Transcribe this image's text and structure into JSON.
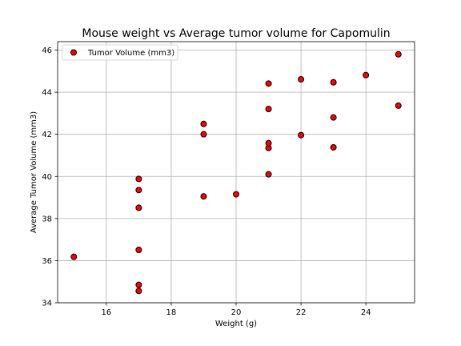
{
  "chart_data": {
    "type": "scatter",
    "title": "Mouse weight vs Average tumor volume for Capomulin",
    "xlabel": "Weight (g)",
    "ylabel": "Average Tumor Volume (mm3)",
    "xlim": [
      14.5,
      25.5
    ],
    "ylim": [
      34,
      46.4
    ],
    "xticks": [
      16,
      18,
      20,
      22,
      24
    ],
    "yticks": [
      34,
      36,
      38,
      40,
      42,
      44,
      46
    ],
    "grid": true,
    "legend_position": "upper-left",
    "series": [
      {
        "name": "Tumor Volume (mm3)",
        "marker_color": "#ff0000",
        "edge_color": "#000000",
        "points": [
          {
            "x": 15,
            "y": 36.18
          },
          {
            "x": 17,
            "y": 34.56
          },
          {
            "x": 17,
            "y": 34.85
          },
          {
            "x": 17,
            "y": 36.51
          },
          {
            "x": 17,
            "y": 38.51
          },
          {
            "x": 17,
            "y": 39.35
          },
          {
            "x": 17,
            "y": 39.88
          },
          {
            "x": 19,
            "y": 39.05
          },
          {
            "x": 19,
            "y": 42.0
          },
          {
            "x": 19,
            "y": 42.49
          },
          {
            "x": 20,
            "y": 39.15
          },
          {
            "x": 21,
            "y": 40.1
          },
          {
            "x": 21,
            "y": 41.35
          },
          {
            "x": 21,
            "y": 41.58
          },
          {
            "x": 21,
            "y": 43.2
          },
          {
            "x": 21,
            "y": 44.41
          },
          {
            "x": 22,
            "y": 41.96
          },
          {
            "x": 22,
            "y": 44.61
          },
          {
            "x": 23,
            "y": 41.38
          },
          {
            "x": 23,
            "y": 42.8
          },
          {
            "x": 23,
            "y": 44.47
          },
          {
            "x": 24,
            "y": 44.81
          },
          {
            "x": 25,
            "y": 43.36
          },
          {
            "x": 25,
            "y": 45.8
          }
        ]
      }
    ]
  }
}
